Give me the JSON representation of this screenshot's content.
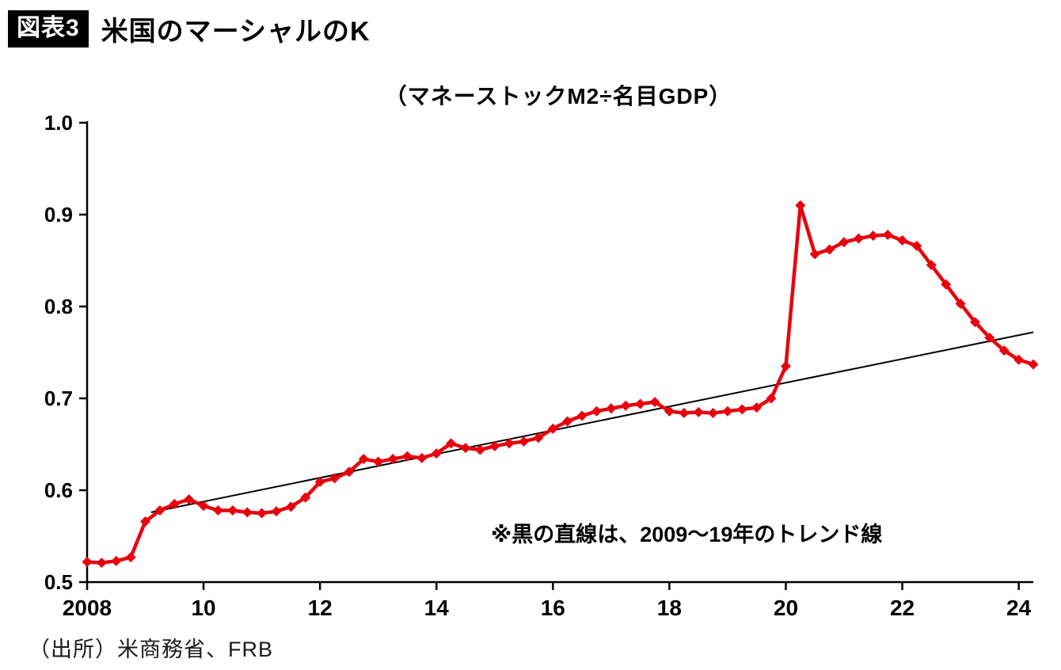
{
  "header": {
    "badge": "図表3",
    "title": "米国のマーシャルのK"
  },
  "footer": {
    "source": "（出所）米商務省、FRB"
  },
  "chart_data": {
    "type": "line",
    "title": "（マネーストックM2÷名目GDP）",
    "annotation": "※黒の直線は、2009〜19年のトレンド線",
    "xlabel": "",
    "ylabel": "",
    "grid": false,
    "legend_position": "none",
    "xlim": [
      2008,
      2024.25
    ],
    "ylim": [
      0.5,
      1.0
    ],
    "x_ticks": [
      "2008",
      "10",
      "12",
      "14",
      "16",
      "18",
      "20",
      "22",
      "24"
    ],
    "x_tick_values": [
      2008,
      2010,
      2012,
      2014,
      2016,
      2018,
      2020,
      2022,
      2024
    ],
    "y_ticks": [
      "0.5",
      "0.6",
      "0.7",
      "0.8",
      "0.9",
      "1.0"
    ],
    "axis_color": "#000000",
    "series": [
      {
        "id": "marshall_k",
        "color": "#e8000d",
        "marker": "diamond",
        "line_width": 4.5,
        "x_start": 2008,
        "x_step_years": 0.25,
        "values": [
          0.522,
          0.521,
          0.523,
          0.527,
          0.566,
          0.578,
          0.585,
          0.59,
          0.583,
          0.578,
          0.578,
          0.576,
          0.575,
          0.577,
          0.582,
          0.592,
          0.609,
          0.613,
          0.62,
          0.634,
          0.631,
          0.634,
          0.637,
          0.635,
          0.64,
          0.651,
          0.646,
          0.644,
          0.648,
          0.651,
          0.653,
          0.657,
          0.667,
          0.675,
          0.681,
          0.686,
          0.689,
          0.692,
          0.694,
          0.696,
          0.686,
          0.684,
          0.685,
          0.684,
          0.686,
          0.688,
          0.69,
          0.7,
          0.735,
          0.91,
          0.857,
          0.862,
          0.87,
          0.874,
          0.877,
          0.878,
          0.872,
          0.866,
          0.845,
          0.824,
          0.803,
          0.783,
          0.766,
          0.752,
          0.742,
          0.737
        ]
      },
      {
        "id": "trend",
        "color": "#000000",
        "marker": "none",
        "line_width": 2,
        "x": [
          2009.1,
          2024.25
        ],
        "values": [
          0.576,
          0.772
        ]
      }
    ]
  }
}
